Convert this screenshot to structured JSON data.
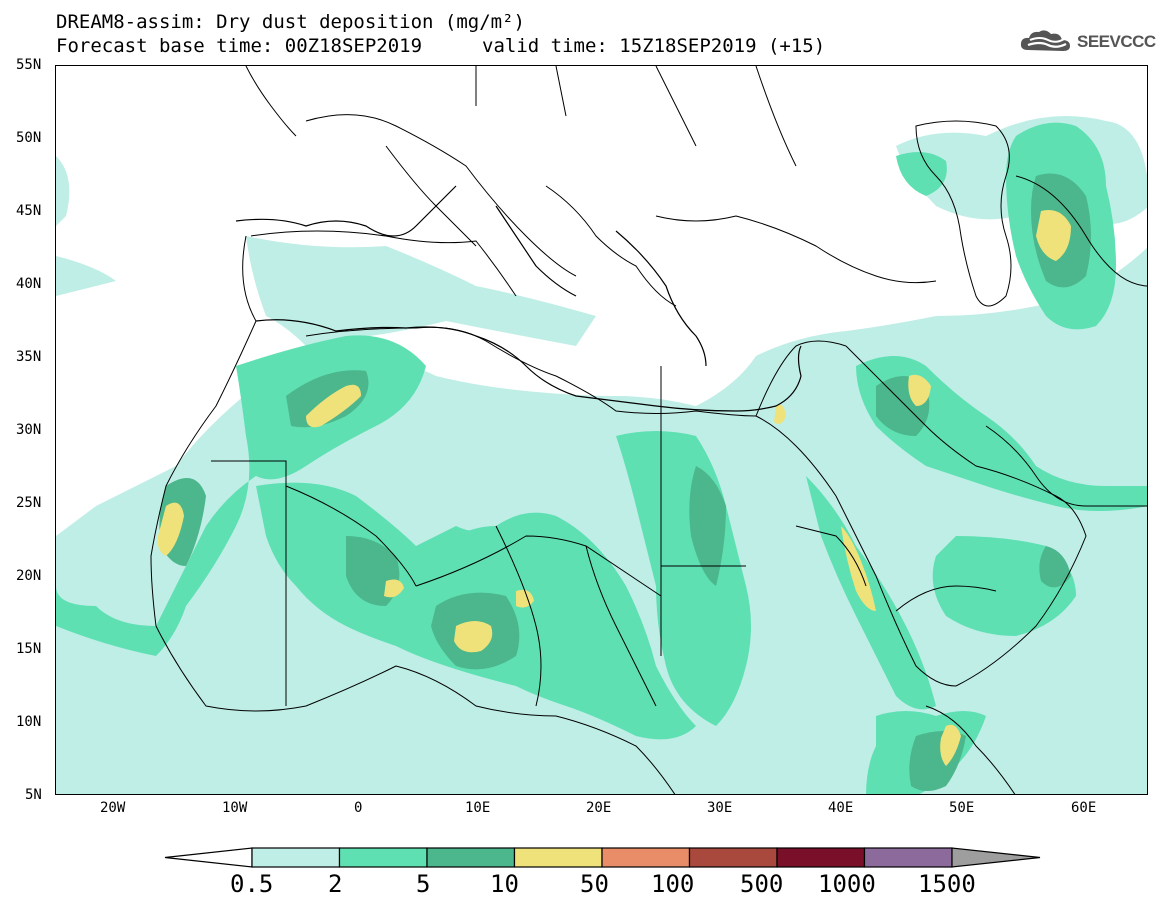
{
  "title": {
    "line1": "DREAM8-assim: Dry dust deposition (mg/m²)",
    "line2_left": "Forecast base time: 00Z18SEP2019",
    "line2_right": "valid time: 15Z18SEP2019 (+15)"
  },
  "logo": {
    "text": "SEEVCCC",
    "icon": "cloud-logo-icon"
  },
  "axes": {
    "lat_labels": [
      "55N",
      "50N",
      "45N",
      "40N",
      "35N",
      "30N",
      "25N",
      "20N",
      "15N",
      "10N",
      "5N"
    ],
    "lon_labels": [
      "20W",
      "10W",
      "0",
      "10E",
      "20E",
      "30E",
      "40E",
      "50E",
      "60E"
    ]
  },
  "legend": {
    "ticks": [
      "0.5",
      "2",
      "5",
      "10",
      "50",
      "100",
      "500",
      "1000",
      "1500"
    ],
    "colors": [
      "#ffffff",
      "#bfeee6",
      "#5ee0b3",
      "#4cb68c",
      "#f0e27a",
      "#e88d68",
      "#a9483c",
      "#7a0f2a",
      "#8c6b9c",
      "#9e9e9e"
    ]
  },
  "map": {
    "ocean_color": "#ffffff",
    "boundary_color": "#000000"
  }
}
